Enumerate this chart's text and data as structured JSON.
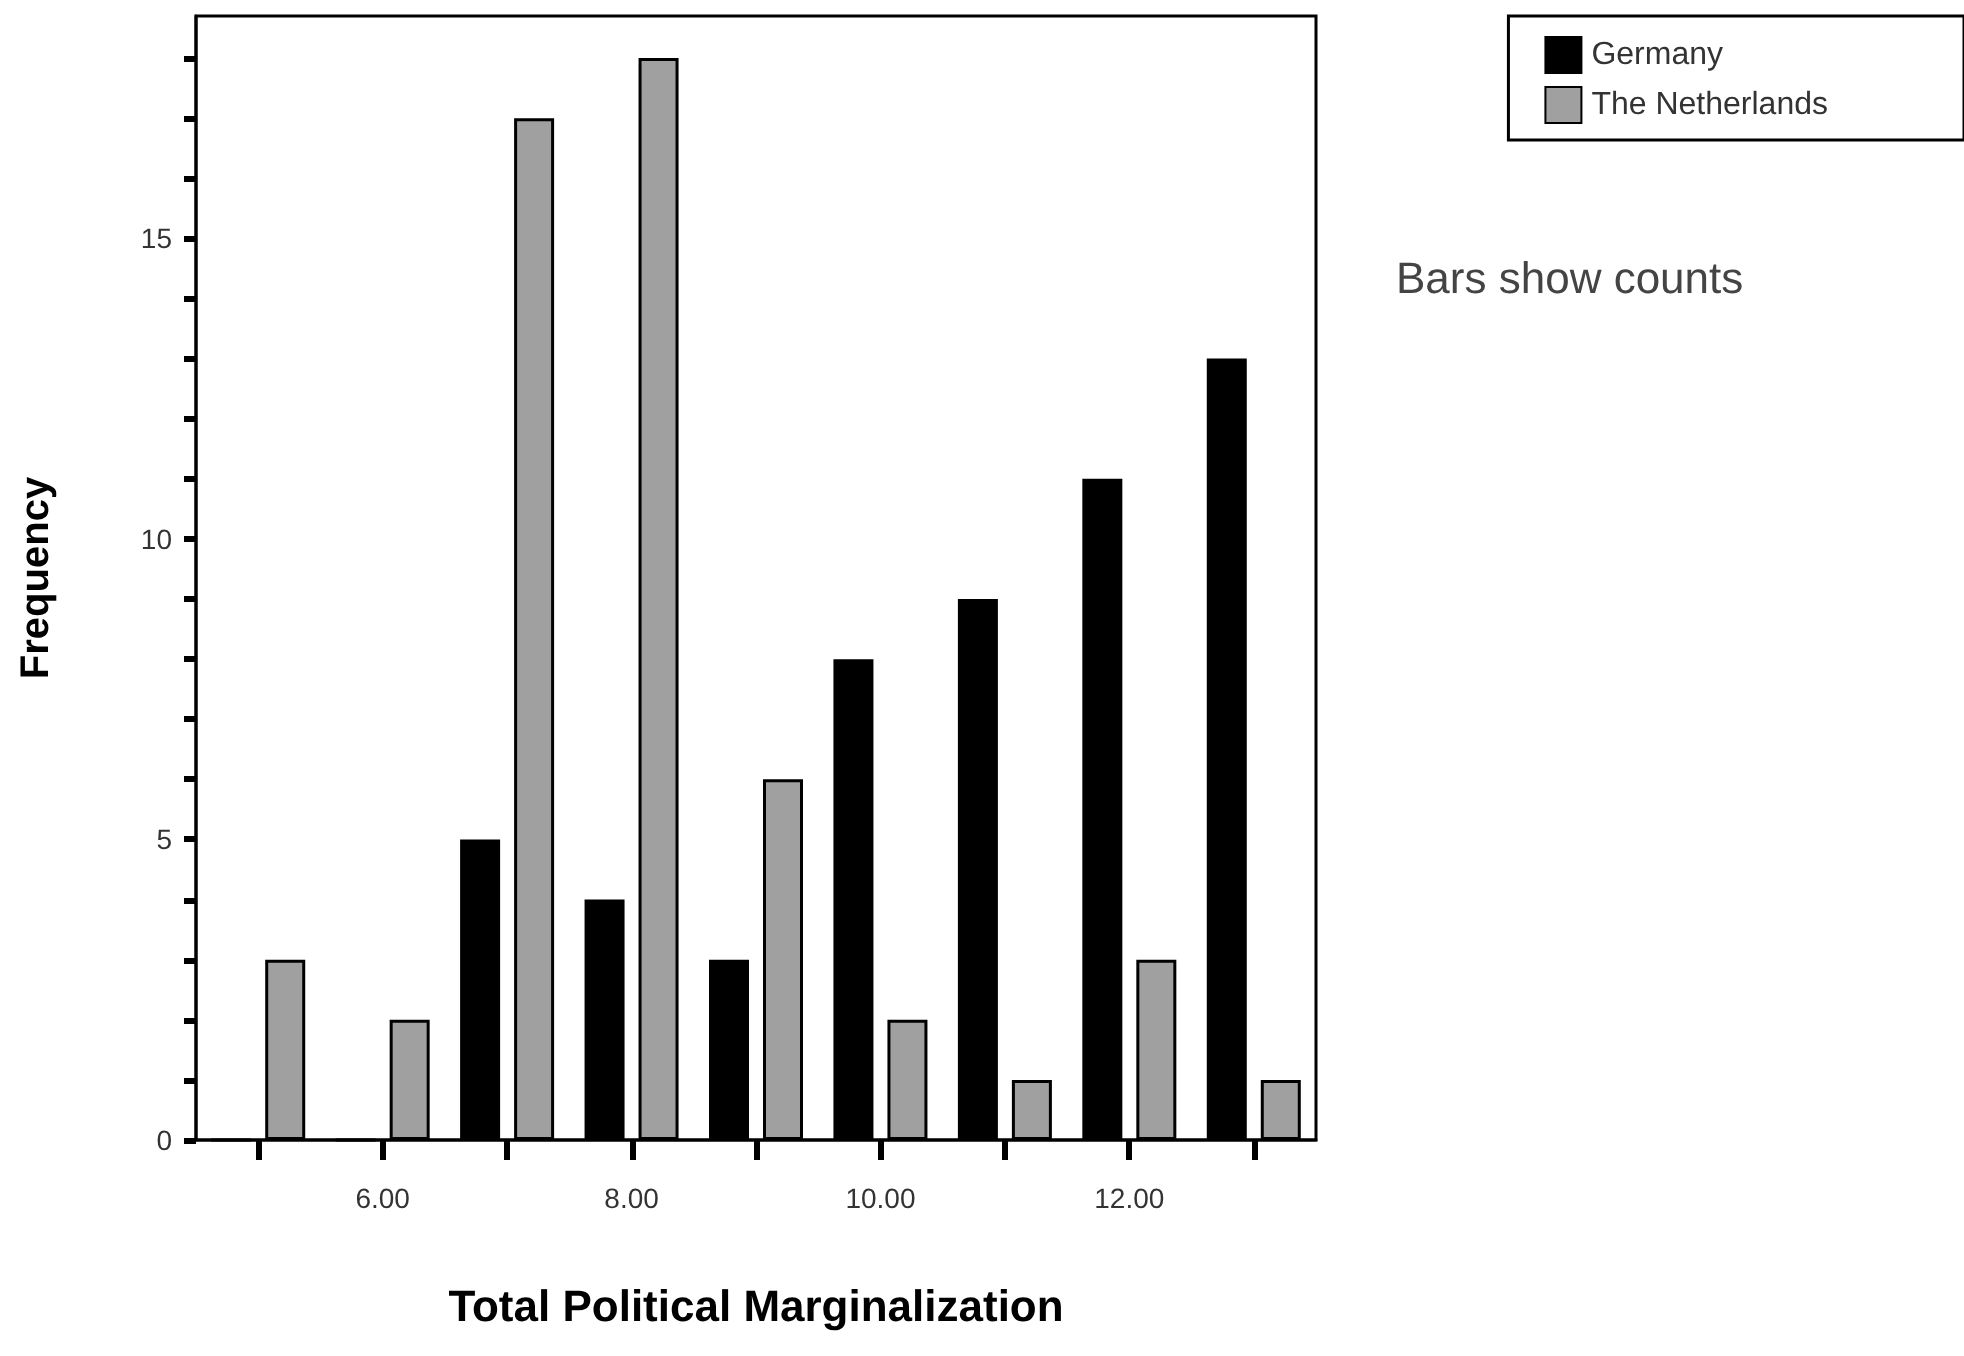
{
  "chart_data": {
    "type": "bar",
    "xlabel": "Total Political Marginalization",
    "ylabel": "Frequency",
    "categories": [
      null,
      "6.00",
      null,
      "8.00",
      null,
      "10.00",
      null,
      "12.00",
      null
    ],
    "series": [
      {
        "name": "Germany",
        "color": "#000000",
        "values": [
          0,
          0,
          5,
          4,
          3,
          8,
          9,
          11,
          13
        ]
      },
      {
        "name": "The Netherlands",
        "color": "#a0a0a0",
        "values": [
          3,
          2,
          17,
          18,
          6,
          2,
          1,
          3,
          1
        ]
      }
    ],
    "ylim": [
      0,
      18.7
    ],
    "yticks": [
      0,
      {
        "value": 1,
        "label": null
      },
      {
        "value": 2,
        "label": null
      },
      {
        "value": 3,
        "label": null
      },
      {
        "value": 4,
        "label": null
      },
      5,
      {
        "value": 6,
        "label": null
      },
      {
        "value": 7,
        "label": null
      },
      {
        "value": 8,
        "label": null
      },
      {
        "value": 9,
        "label": null
      },
      10,
      {
        "value": 11,
        "label": null
      },
      {
        "value": 12,
        "label": null
      },
      {
        "value": 13,
        "label": null
      },
      {
        "value": 14,
        "label": null
      },
      15,
      {
        "value": 16,
        "label": null
      },
      {
        "value": 17,
        "label": null
      },
      {
        "value": 18,
        "label": null
      }
    ],
    "legend": "top right",
    "grid": false,
    "annotations": [
      "Bars show counts"
    ]
  }
}
